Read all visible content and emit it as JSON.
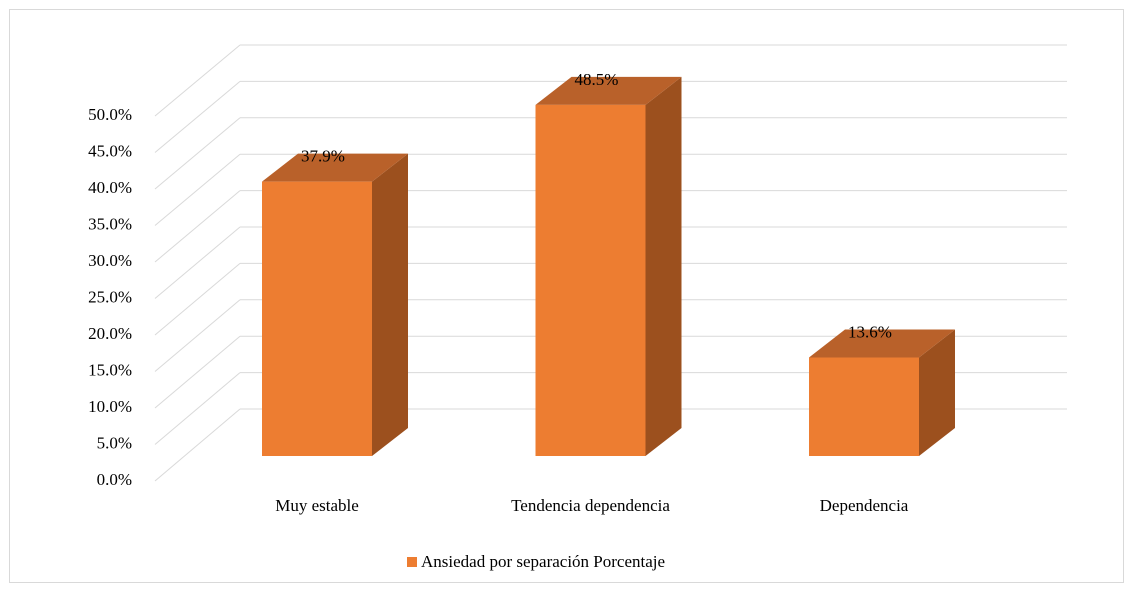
{
  "chart_data": {
    "type": "bar3d",
    "categories": [
      "Muy estable",
      "Tendencia dependencia",
      "Dependencia"
    ],
    "series": [
      {
        "name": "Ansiedad por separación Porcentaje",
        "color": "#ed7d31",
        "values": [
          37.9,
          48.5,
          13.6
        ],
        "value_labels": [
          "37.9%",
          "48.5%",
          "13.6%"
        ]
      }
    ],
    "ylim": [
      0,
      50
    ],
    "yticks": [
      {
        "value": 0,
        "label": "0.0%"
      },
      {
        "value": 5,
        "label": "5.0%"
      },
      {
        "value": 10,
        "label": "10.0%"
      },
      {
        "value": 15,
        "label": "15.0%"
      },
      {
        "value": 20,
        "label": "20.0%"
      },
      {
        "value": 25,
        "label": "25.0%"
      },
      {
        "value": 30,
        "label": "30.0%"
      },
      {
        "value": 35,
        "label": "35.0%"
      },
      {
        "value": 40,
        "label": "40.0%"
      },
      {
        "value": 45,
        "label": "45.0%"
      },
      {
        "value": 50,
        "label": "50.0%"
      }
    ],
    "grid": true,
    "legend": "bottom"
  }
}
